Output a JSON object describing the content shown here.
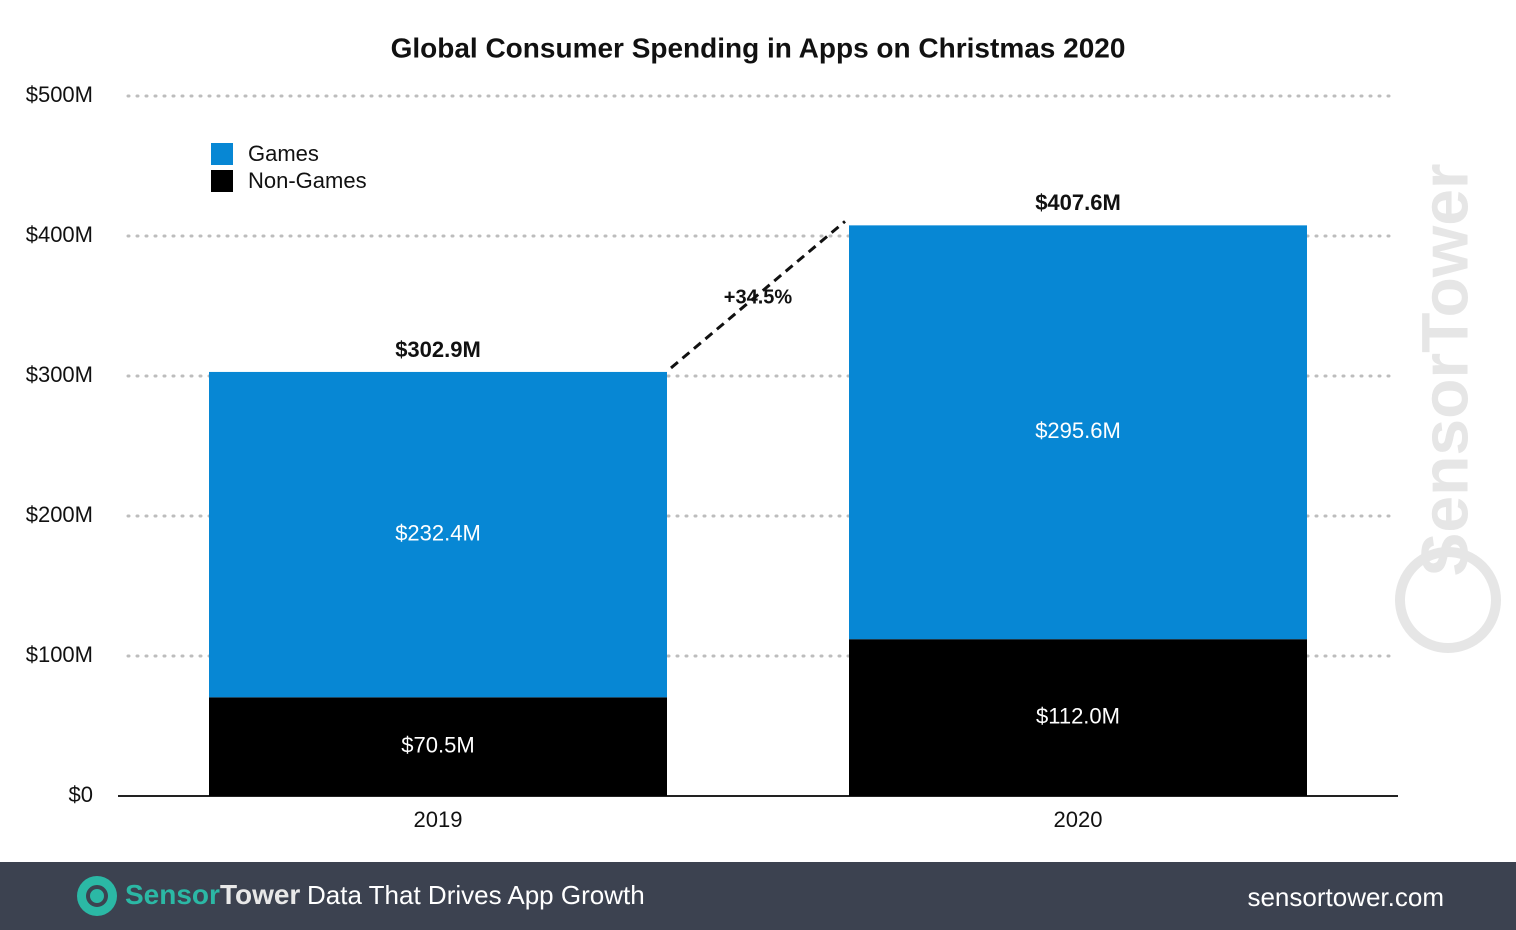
{
  "chart_data": {
    "type": "stacked_bar",
    "title": "Global Consumer Spending in Apps on Christmas 2020",
    "categories": [
      "2019",
      "2020"
    ],
    "series": [
      {
        "name": "Games",
        "color": "#0787d4",
        "values": [
          232.4,
          295.6
        ],
        "value_labels": [
          "$232.4M",
          "$295.6M"
        ]
      },
      {
        "name": "Non-Games",
        "color": "#000000",
        "values": [
          70.5,
          112.0
        ],
        "value_labels": [
          "$70.5M",
          "$112.0M"
        ]
      }
    ],
    "totals": [
      {
        "value": 302.9,
        "label": "$302.9M"
      },
      {
        "value": 407.6,
        "label": "$407.6M"
      }
    ],
    "annotation": {
      "value": 34.5,
      "label": "+34.5%"
    },
    "ylim": [
      0,
      500
    ],
    "yticks": [
      {
        "value": 0,
        "label": "$0"
      },
      {
        "value": 100,
        "label": "$100M"
      },
      {
        "value": 200,
        "label": "$200M"
      },
      {
        "value": 300,
        "label": "$300M"
      },
      {
        "value": 400,
        "label": "$400M"
      },
      {
        "value": 500,
        "label": "$500M"
      }
    ],
    "grid": true,
    "legend": "upper left",
    "watermark": "SensorTower"
  },
  "footer": {
    "brand": {
      "first": "Sensor",
      "second": "Tower"
    },
    "tagline": "Data That Drives App Growth",
    "url": "sensortower.com"
  }
}
